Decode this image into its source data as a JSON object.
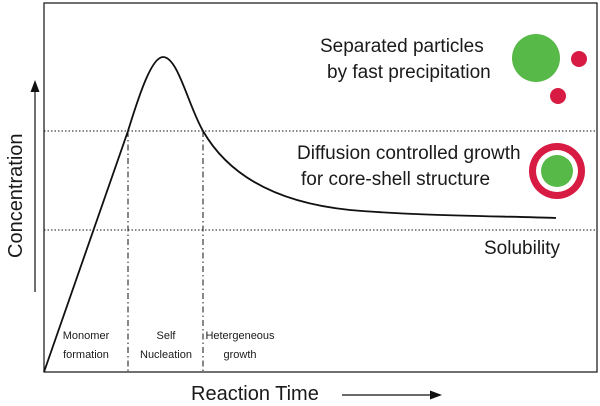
{
  "axes": {
    "x_label": "Reaction Time",
    "y_label": "Concentration"
  },
  "annotations": {
    "precipitation_line1": "Separated particles",
    "precipitation_line2": "by fast precipitation",
    "diffusion_line1": "Diffusion controlled growth",
    "diffusion_line2": "for core-shell structure",
    "solubility": "Solubility"
  },
  "stages": {
    "monomer_line1": "Monomer",
    "monomer_line2": "formation",
    "nucleation_line1": "Self",
    "nucleation_line2": "Nucleation",
    "growth_line1": "Hetergeneous",
    "growth_line2": "growth"
  },
  "colors": {
    "particle_green": "#57b947",
    "particle_red": "#d81b43",
    "line": "#111111"
  }
}
